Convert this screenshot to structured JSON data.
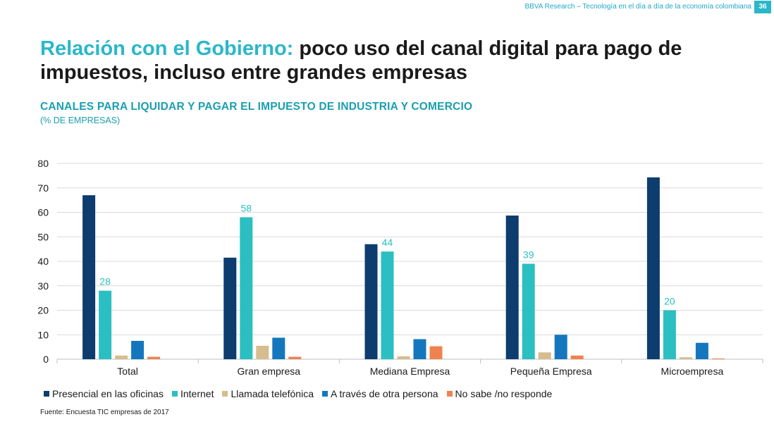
{
  "header": {
    "source_text": "BBVA Research – Tecnología en el día a día de la economía colombiana",
    "page_number": "36"
  },
  "title": {
    "accent": "Relación con el Gobierno:",
    "rest": " poco uso del canal digital para pago de impuestos, incluso entre grandes empresas"
  },
  "chart_data": {
    "type": "bar",
    "title": "CANALES PARA LIQUIDAR Y PAGAR EL IMPUESTO DE INDUSTRIA Y COMERCIO",
    "subtitle": "(% DE EMPRESAS)",
    "categories": [
      "Total",
      "Gran empresa",
      "Mediana Empresa",
      "Pequeña Empresa",
      "Microempresa"
    ],
    "ylim": [
      0,
      80
    ],
    "yticks": [
      0,
      10,
      20,
      30,
      40,
      50,
      60,
      70,
      80
    ],
    "grid": true,
    "legend_position": "bottom",
    "series": [
      {
        "name": "Presencial en las oficinas",
        "color": "#0d3c6e",
        "values": [
          67,
          41.5,
          47,
          58.7,
          74.3
        ]
      },
      {
        "name": "Internet",
        "color": "#2bbfc2",
        "values": [
          28,
          58,
          44,
          39,
          20
        ],
        "labels": [
          "28",
          "58",
          "44",
          "39",
          "20"
        ]
      },
      {
        "name": "Llamada telefónica",
        "color": "#d6bd8f",
        "values": [
          1.5,
          5.5,
          1.2,
          2.8,
          0.8
        ]
      },
      {
        "name": "A través de otra persona",
        "color": "#1477bd",
        "values": [
          7.5,
          8.8,
          8.2,
          10,
          6.7
        ]
      },
      {
        "name": "No sabe /no responde",
        "color": "#ee8350",
        "values": [
          1,
          1,
          5.3,
          1.5,
          0.3
        ]
      }
    ]
  },
  "footer": {
    "source": "Fuente: Encuesta TIC empresas de 2017"
  }
}
